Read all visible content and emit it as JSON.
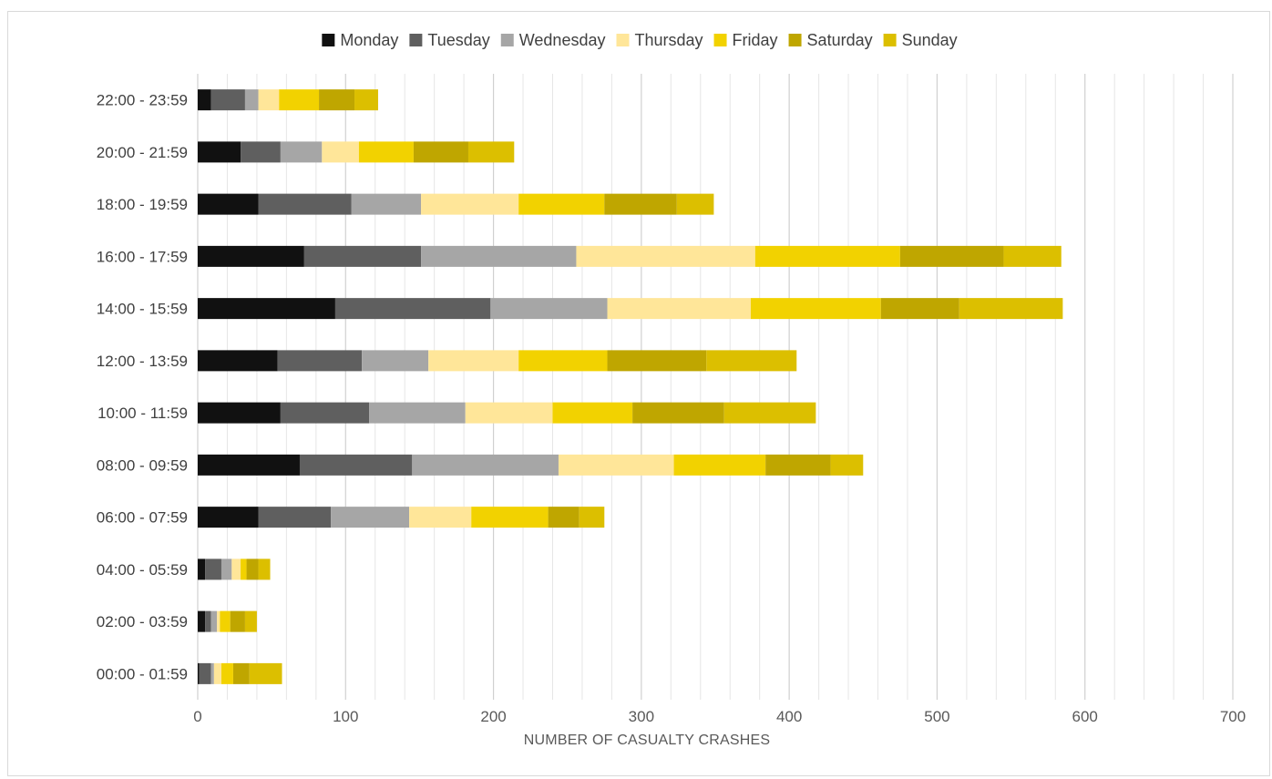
{
  "chart_data": {
    "type": "bar",
    "orientation": "horizontal",
    "stacked": true,
    "title": "",
    "xlabel": "NUMBER OF CASUALTY CRASHES",
    "ylabel": "",
    "xlim": [
      0,
      700
    ],
    "xticks": [
      0,
      100,
      200,
      300,
      400,
      500,
      600,
      700
    ],
    "minor_grid_step": 20,
    "grid": true,
    "legend_position": "top",
    "categories": [
      "00:00 - 01:59",
      "02:00 - 03:59",
      "04:00 - 05:59",
      "06:00 - 07:59",
      "08:00 - 09:59",
      "10:00 - 11:59",
      "12:00 - 13:59",
      "14:00 - 15:59",
      "16:00 - 17:59",
      "18:00 - 19:59",
      "20:00 - 21:59",
      "22:00 - 23:59"
    ],
    "series": [
      {
        "name": "Monday",
        "color": "#111111",
        "values": [
          1,
          5,
          5,
          41,
          69,
          56,
          54,
          93,
          72,
          41,
          29,
          9
        ]
      },
      {
        "name": "Tuesday",
        "color": "#5f5f5f",
        "values": [
          8,
          4,
          11,
          49,
          76,
          60,
          57,
          105,
          79,
          63,
          27,
          23
        ]
      },
      {
        "name": "Wednesday",
        "color": "#a6a6a6",
        "values": [
          2,
          4,
          7,
          53,
          99,
          65,
          45,
          79,
          105,
          47,
          28,
          9
        ]
      },
      {
        "name": "Thursday",
        "color": "#ffe699",
        "values": [
          5,
          2,
          6,
          42,
          78,
          59,
          61,
          97,
          121,
          66,
          25,
          14
        ]
      },
      {
        "name": "Friday",
        "color": "#f2d200",
        "values": [
          8,
          7,
          4,
          52,
          62,
          54,
          60,
          88,
          98,
          58,
          37,
          27
        ]
      },
      {
        "name": "Saturday",
        "color": "#bfa600",
        "values": [
          11,
          10,
          8,
          21,
          44,
          62,
          67,
          53,
          70,
          49,
          37,
          24
        ]
      },
      {
        "name": "Sunday",
        "color": "#dcbf00",
        "values": [
          22,
          8,
          8,
          17,
          22,
          62,
          61,
          70,
          39,
          25,
          31,
          16
        ]
      }
    ]
  }
}
